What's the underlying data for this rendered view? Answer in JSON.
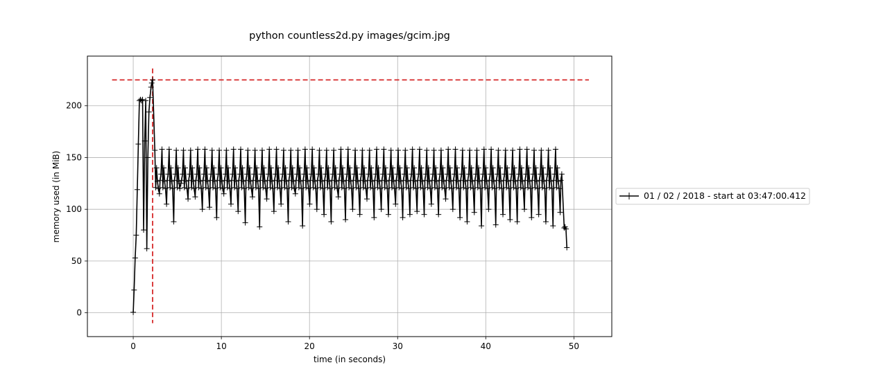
{
  "chart_data": {
    "type": "line",
    "title": "python countless2d.py images/gcim.jpg",
    "xlabel": "time (in seconds)",
    "ylabel": "memory used (in MiB)",
    "xlim": [
      -5.2,
      54.3
    ],
    "ylim": [
      -23,
      248
    ],
    "xticks": [
      0,
      10,
      20,
      30,
      40,
      50
    ],
    "yticks": [
      0,
      50,
      100,
      150,
      200
    ],
    "grid": true,
    "legend_position": "right",
    "series": [
      {
        "name": "01 / 02 / 2018 - start at 03:47:00.412",
        "color": "#000000",
        "marker": "+",
        "ramp": {
          "x": [
            0.0,
            0.1,
            0.22,
            0.34,
            0.46,
            0.58,
            0.7,
            0.82,
            0.94,
            1.06,
            1.18,
            1.3,
            1.42,
            1.54,
            1.66,
            1.78,
            1.9,
            2.02,
            2.1,
            2.2
          ],
          "y": [
            0.5,
            22,
            53,
            75,
            119,
            163,
            205,
            206,
            205,
            206,
            80,
            166,
            205,
            62,
            150,
            194,
            208,
            218,
            222,
            225
          ]
        },
        "cycle": {
          "start": 2.45,
          "period": 0.812,
          "count": 57,
          "offsets": [
            0.0,
            0.1,
            0.2,
            0.3,
            0.4,
            0.52,
            0.6,
            0.7
          ],
          "pattern": [
            158,
            121,
            140,
            127,
            120,
            100,
            128,
            134
          ],
          "peaks": [
            157,
            158,
            158,
            157,
            157
          ],
          "troughs": [
            115,
            105,
            88,
            125,
            110,
            112,
            100,
            102,
            92,
            115,
            105,
            98,
            87,
            112,
            83,
            110,
            98,
            105,
            88,
            115,
            84,
            105,
            100,
            95,
            88,
            112,
            90,
            100,
            95,
            110,
            92,
            100,
            95,
            105,
            92,
            95,
            98,
            95,
            105,
            95,
            110,
            100,
            92,
            88,
            97,
            84,
            100,
            85,
            95,
            90,
            88,
            100,
            92,
            95,
            88,
            84,
            97
          ]
        },
        "tail": {
          "x": [
            48.9,
            49.0,
            49.1,
            49.2
          ],
          "y": [
            82,
            83,
            81,
            63
          ]
        }
      }
    ],
    "reference_lines": [
      {
        "orientation": "horizontal",
        "value": 225,
        "from": -2.4,
        "to": 51.7,
        "color": "#d62728",
        "style": "dashed"
      },
      {
        "orientation": "vertical",
        "value": 2.2,
        "from": -10,
        "to": 236,
        "color": "#d62728",
        "style": "dashed"
      }
    ]
  }
}
